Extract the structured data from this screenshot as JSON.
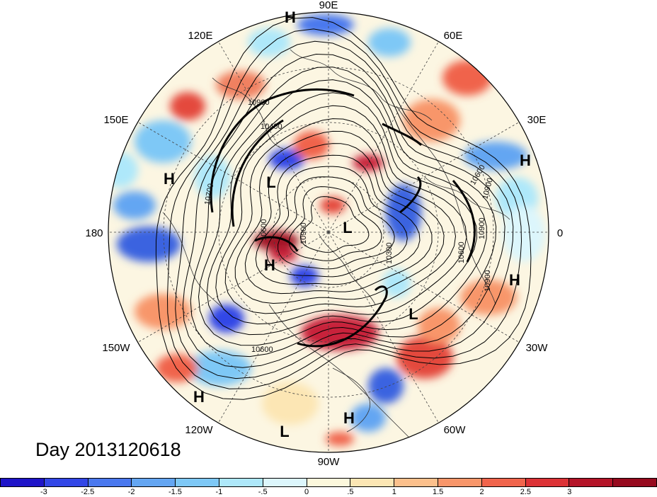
{
  "date_label": "Day 2013120618",
  "longitude_labels": [
    "90E",
    "60E",
    "30E",
    "0",
    "30W",
    "60W",
    "90W",
    "120W",
    "150W",
    "180",
    "150E",
    "120E"
  ],
  "pressure_centers": [
    {
      "type": "H"
    },
    {
      "type": "H"
    },
    {
      "type": "H"
    },
    {
      "type": "H"
    },
    {
      "type": "H"
    },
    {
      "type": "H"
    },
    {
      "type": "H"
    },
    {
      "type": "L"
    },
    {
      "type": "L"
    },
    {
      "type": "L"
    },
    {
      "type": "L"
    }
  ],
  "contour_labels": [
    "10900",
    "10400",
    "10600",
    "10700",
    "10900",
    "10300",
    "10600",
    "10900",
    "10600",
    "10600",
    "10900",
    "10900"
  ],
  "colorbar": {
    "colors": [
      "#1e14c8",
      "#3246e6",
      "#4a78ee",
      "#64a6f2",
      "#7ec8f6",
      "#aee8fa",
      "#dcf6fc",
      "#fcf8dc",
      "#fce6b4",
      "#fcc08c",
      "#f8966a",
      "#f0644c",
      "#dc3236",
      "#b41428",
      "#960a1e"
    ],
    "tick_labels": [
      "-3",
      "-2.5",
      "-2",
      "-1.5",
      "-1",
      "-.5",
      "0",
      ".5",
      "1",
      "1.5",
      "2",
      "2.5",
      "3"
    ]
  }
}
